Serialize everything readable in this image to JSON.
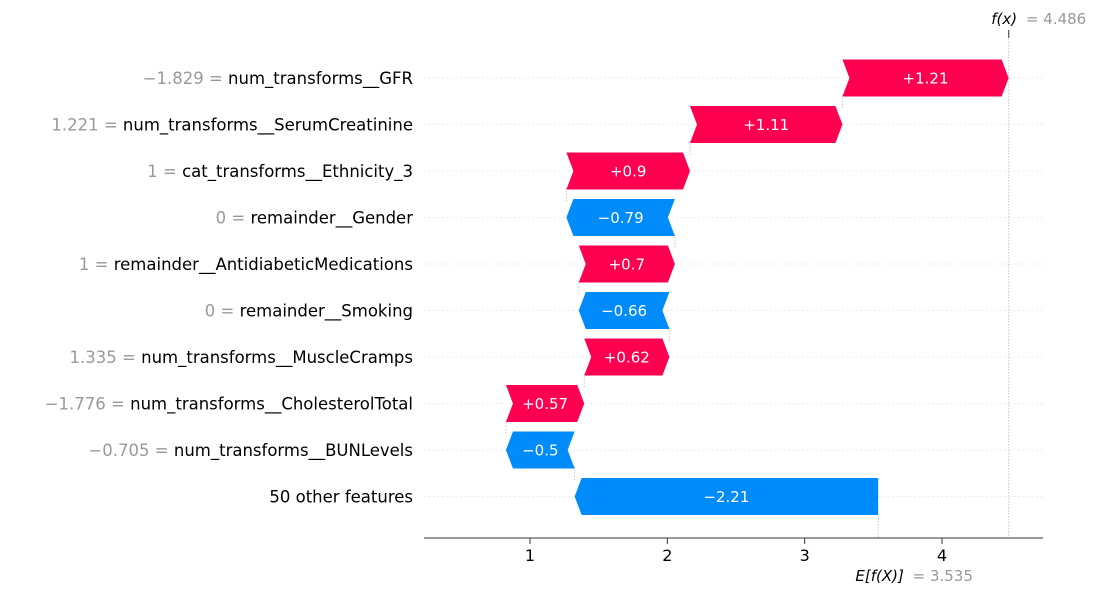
{
  "chart_data": {
    "type": "waterfall",
    "fx": {
      "label": "f(x)",
      "eq": "= 4.486",
      "value": 4.486
    },
    "base": {
      "label": "E[f(X)]",
      "eq": "= 3.535",
      "value": 3.535
    },
    "xlim": [
      0.35,
      4.75
    ],
    "xticks": [
      "1",
      "2",
      "3",
      "4"
    ],
    "features": [
      {
        "name": "num_transforms__GFR",
        "value": "−1.829 =",
        "contribution": 1.21,
        "label": "+1.21"
      },
      {
        "name": "num_transforms__SerumCreatinine",
        "value": "1.221 =",
        "contribution": 1.11,
        "label": "+1.11"
      },
      {
        "name": "cat_transforms__Ethnicity_3",
        "value": "1 =",
        "contribution": 0.9,
        "label": "+0.9"
      },
      {
        "name": "remainder__Gender",
        "value": "0 =",
        "contribution": -0.79,
        "label": "−0.79"
      },
      {
        "name": "remainder__AntidiabeticMedications",
        "value": "1 =",
        "contribution": 0.7,
        "label": "+0.7"
      },
      {
        "name": "remainder__Smoking",
        "value": "0 =",
        "contribution": -0.66,
        "label": "−0.66"
      },
      {
        "name": "num_transforms__MuscleCramps",
        "value": "1.335 =",
        "contribution": 0.62,
        "label": "+0.62"
      },
      {
        "name": "num_transforms__CholesterolTotal",
        "value": "−1.776 =",
        "contribution": 0.57,
        "label": "+0.57"
      },
      {
        "name": "num_transforms__BUNLevels",
        "value": "−0.705 =",
        "contribution": -0.5,
        "label": "−0.5"
      },
      {
        "name": "50 other features",
        "value": "",
        "contribution": -2.21,
        "label": "−2.21"
      }
    ],
    "colors": {
      "positive": "#ff0051",
      "negative": "#008bfb",
      "grid": "#e6e6e6",
      "guide": "#bbbbbb"
    }
  }
}
